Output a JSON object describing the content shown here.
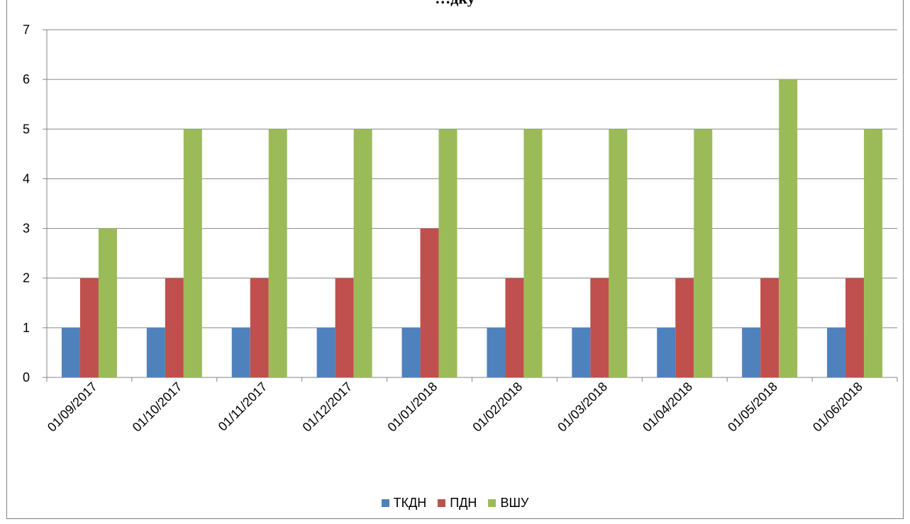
{
  "chart_data": {
    "type": "bar",
    "title": "…дку",
    "categories": [
      "01/09/2017",
      "01/10/2017",
      "01/11/2017",
      "01/12/2017",
      "01/01/2018",
      "01/02/2018",
      "01/03/2018",
      "01/04/2018",
      "01/05/2018",
      "01/06/2018"
    ],
    "series": [
      {
        "name": "ТКДН",
        "color": "#4f81bd",
        "values": [
          1,
          1,
          1,
          1,
          1,
          1,
          1,
          1,
          1,
          1
        ]
      },
      {
        "name": "ПДН",
        "color": "#c0504d",
        "values": [
          2,
          2,
          2,
          2,
          3,
          2,
          2,
          2,
          2,
          2
        ]
      },
      {
        "name": "ВШУ",
        "color": "#9bbb59",
        "values": [
          3,
          5,
          5,
          5,
          5,
          5,
          5,
          5,
          6,
          5
        ]
      }
    ],
    "ylim": [
      0,
      7
    ],
    "yticks": [
      "0",
      "1",
      "2",
      "3",
      "4",
      "5",
      "6",
      "7"
    ],
    "grid": true,
    "legend_position": "bottom",
    "xlabel": "",
    "ylabel": ""
  }
}
